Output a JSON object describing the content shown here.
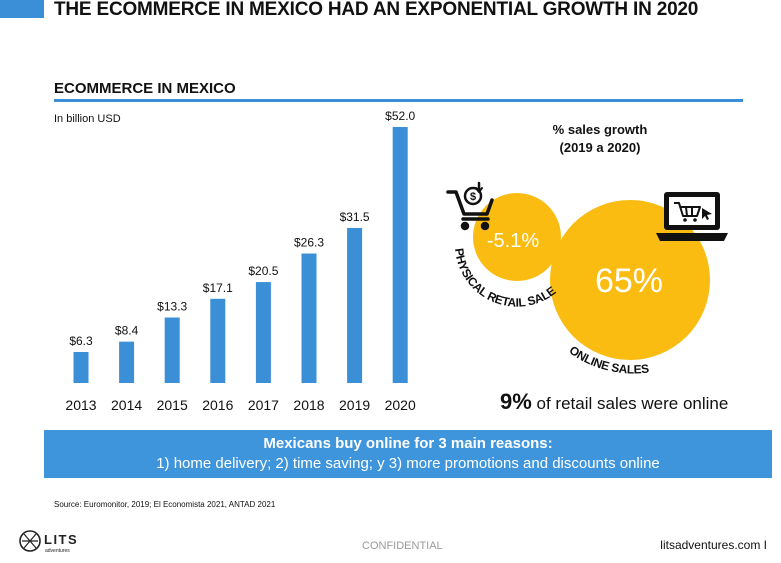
{
  "header": {
    "title": "THE ECOMMERCE IN MEXICO HAD AN EXPONENTIAL GROWTH IN 2020"
  },
  "section": {
    "title": "ECOMMERCE IN MEXICO"
  },
  "chart_data": [
    {
      "type": "bar",
      "title": "",
      "subtitle": "In billion USD",
      "categories": [
        "2013",
        "2014",
        "2015",
        "2016",
        "2017",
        "2018",
        "2019",
        "2020"
      ],
      "values": [
        6.3,
        8.4,
        13.3,
        17.1,
        20.5,
        26.3,
        31.5,
        52.0
      ],
      "data_labels": [
        "$6.3",
        "$8.4",
        "$13.3",
        "$17.1",
        "$20.5",
        "$26.3",
        "$31.5",
        "$52.0"
      ],
      "ylim": [
        0,
        52
      ],
      "grid": false,
      "color": "#3b8fd6"
    },
    {
      "type": "bubble",
      "title": "% sales growth (2019 a 2020)",
      "title_lines": [
        "% sales growth",
        "(2019 a 2020)"
      ],
      "items": [
        {
          "name": "PHYSICAL RETAIL SALES",
          "value": -5.1,
          "label": "-5.1%",
          "icon": "shopping-cart-dollar-icon"
        },
        {
          "name": "ONLINE SALES",
          "value": 65,
          "label": "65%",
          "icon": "laptop-cart-icon"
        }
      ],
      "color": "#fbbc12"
    }
  ],
  "summary": {
    "bold": "9%",
    "text": " of retail sales were online"
  },
  "banner": {
    "line1": "Mexicans buy online for 3 main reasons:",
    "line2": "1) home delivery; 2) time saving; y 3) more promotions and discounts online"
  },
  "footer": {
    "source": "Source: Euromonitor, 2019; El Economista 2021, ANTAD 2021",
    "logo_text": "LITS",
    "logo_subtext": "adventures",
    "confidential": "CONFIDENTIAL",
    "site": "litsadventures.com  I"
  }
}
